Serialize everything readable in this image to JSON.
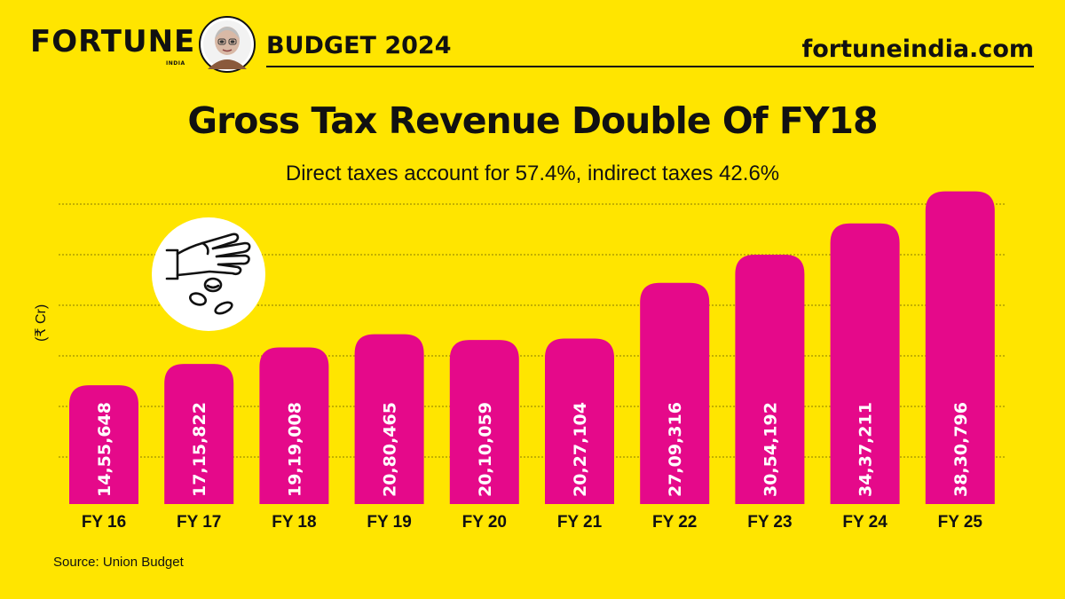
{
  "header": {
    "brand": "FORTUNE",
    "brand_sub": "INDIA",
    "budget_label": "BUDGET 2024",
    "site": "fortuneindia.com"
  },
  "colors": {
    "background": "#FFE500",
    "bar": "#E5098A",
    "text": "#111111"
  },
  "chart_data": {
    "type": "bar",
    "title": "Gross Tax Revenue Double Of FY18",
    "subtitle": "Direct taxes account for 57.4%, indirect taxes 42.6%",
    "ylabel": "(₹ Cr)",
    "xlabel": "",
    "categories": [
      "FY 16",
      "FY 17",
      "FY 18",
      "FY 19",
      "FY 20",
      "FY 21",
      "FY 22",
      "FY 23",
      "FY 24",
      "FY 25"
    ],
    "values": [
      1455648,
      1715822,
      1919008,
      2080465,
      2010059,
      2027104,
      2709316,
      3054192,
      3437211,
      3830796
    ],
    "value_labels": [
      "14,55,648",
      "17,15,822",
      "19,19,008",
      "20,80,465",
      "20,10,059",
      "20,27,104",
      "27,09,316",
      "30,54,192",
      "34,37,211",
      "38,30,796"
    ],
    "ylim": [
      0,
      4000000
    ],
    "grid": true,
    "legend": "none"
  },
  "icons": [
    "hand-dropping-coins-icon",
    "finance-minister-avatar"
  ],
  "source": "Source: Union Budget"
}
